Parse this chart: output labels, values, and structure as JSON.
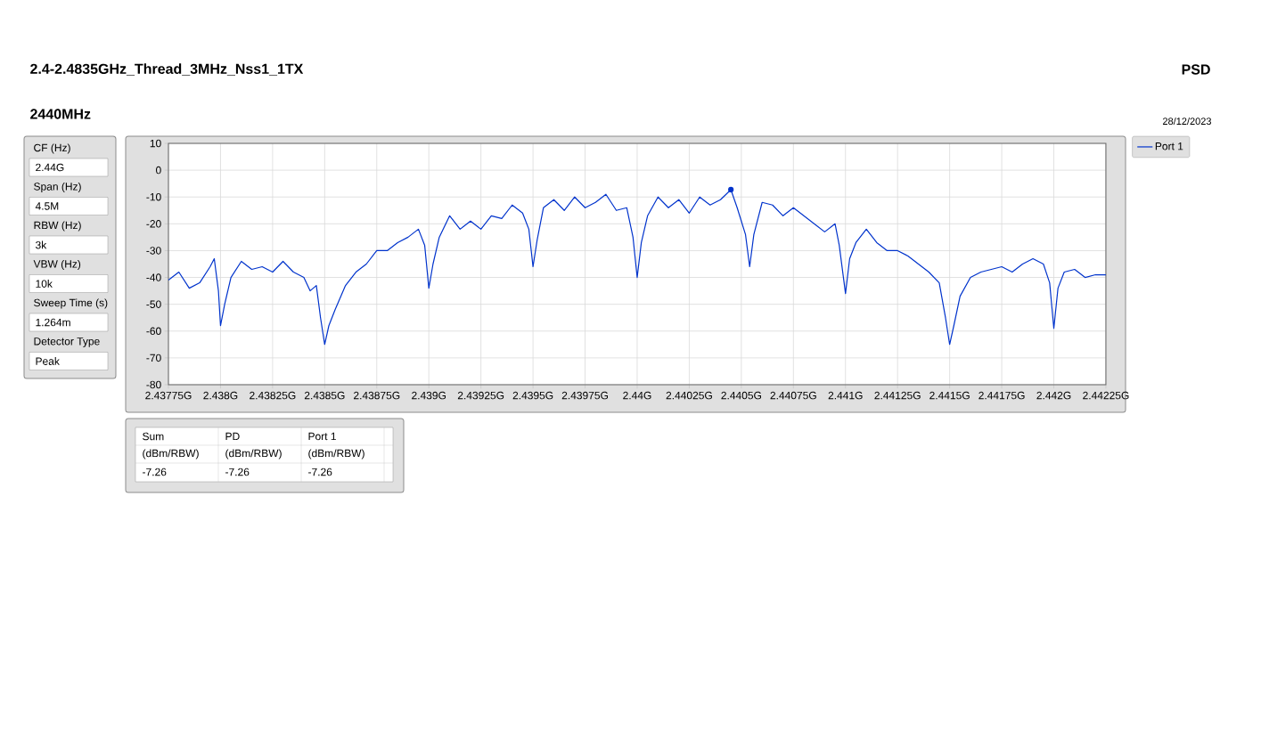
{
  "chart_data": {
    "type": "line",
    "title": "2.4-2.4835GHz_Thread_3MHz_Nss1_1TX",
    "subtitle": "2440MHz",
    "annotations": [
      "PSD",
      "28/12/2023",
      "CF (Hz)",
      "2.44G",
      "Span (Hz)",
      "4.5M",
      "RBW (Hz)",
      "3k",
      "VBW (Hz)",
      "10k",
      "Sweep Time (s)",
      "1.264m",
      "Detector Type",
      "Peak",
      "Sum",
      "PD",
      "Port 1",
      "(dBm/RBW)",
      "(dBm/RBW)",
      "(dBm/RBW)",
      "-7.26",
      "-7.26",
      "-7.26"
    ],
    "xlim": [
      2.43775,
      2.44225
    ],
    "xticks": [
      {
        "value": 2.43775,
        "label": "2.43775G"
      },
      {
        "value": 2.438,
        "label": "2.438G"
      },
      {
        "value": 2.43825,
        "label": "2.43825G"
      },
      {
        "value": 2.4385,
        "label": "2.4385G"
      },
      {
        "value": 2.43875,
        "label": "2.43875G"
      },
      {
        "value": 2.439,
        "label": "2.439G"
      },
      {
        "value": 2.43925,
        "label": "2.43925G"
      },
      {
        "value": 2.4395,
        "label": "2.4395G"
      },
      {
        "value": 2.43975,
        "label": "2.43975G"
      },
      {
        "value": 2.44,
        "label": "2.44G"
      },
      {
        "value": 2.44025,
        "label": "2.44025G"
      },
      {
        "value": 2.4405,
        "label": "2.4405G"
      },
      {
        "value": 2.44075,
        "label": "2.44075G"
      },
      {
        "value": 2.441,
        "label": "2.441G"
      },
      {
        "value": 2.44125,
        "label": "2.44125G"
      },
      {
        "value": 2.4415,
        "label": "2.4415G"
      },
      {
        "value": 2.44175,
        "label": "2.44175G"
      },
      {
        "value": 2.442,
        "label": "2.442G"
      },
      {
        "value": 2.44225,
        "label": "2.44225G"
      }
    ],
    "ylim": [
      -80,
      10
    ],
    "yticks": [
      -80,
      -70,
      -60,
      -50,
      -40,
      -30,
      -20,
      -10,
      0,
      10
    ],
    "grid": true,
    "legend": "top right",
    "series": [
      {
        "name": "Port 1",
        "color": "#0033cc",
        "marker": "none",
        "x": [
          2.43775,
          2.4378,
          2.43785,
          2.4379,
          2.43795,
          2.43797,
          2.43799,
          2.438,
          2.43802,
          2.43805,
          2.4381,
          2.43815,
          2.4382,
          2.43825,
          2.4383,
          2.43835,
          2.4384,
          2.43843,
          2.43846,
          2.43848,
          2.4385,
          2.43852,
          2.43855,
          2.4386,
          2.43865,
          2.4387,
          2.43875,
          2.4388,
          2.43885,
          2.4389,
          2.43895,
          2.43898,
          2.439,
          2.43902,
          2.43905,
          2.4391,
          2.43915,
          2.4392,
          2.43925,
          2.4393,
          2.43935,
          2.4394,
          2.43945,
          2.43948,
          2.4395,
          2.43952,
          2.43955,
          2.4396,
          2.43965,
          2.4397,
          2.43975,
          2.4398,
          2.43985,
          2.4399,
          2.43995,
          2.43998,
          2.44,
          2.44002,
          2.44005,
          2.4401,
          2.44015,
          2.4402,
          2.44025,
          2.4403,
          2.44035,
          2.4404,
          2.44045,
          2.44048,
          2.44052,
          2.44054,
          2.44056,
          2.4406,
          2.44065,
          2.4407,
          2.44075,
          2.4408,
          2.44085,
          2.4409,
          2.44095,
          2.44097,
          2.441,
          2.44102,
          2.44105,
          2.4411,
          2.44115,
          2.4412,
          2.44125,
          2.4413,
          2.44135,
          2.4414,
          2.44145,
          2.44148,
          2.4415,
          2.44152,
          2.44155,
          2.4416,
          2.44165,
          2.4417,
          2.44175,
          2.4418,
          2.44185,
          2.4419,
          2.44195,
          2.44198,
          2.442,
          2.44202,
          2.44205,
          2.4421,
          2.44215,
          2.4422,
          2.44225
        ],
        "values": [
          -41,
          -38,
          -44,
          -42,
          -36,
          -33,
          -45,
          -58,
          -50,
          -40,
          -34,
          -37,
          -36,
          -38,
          -34,
          -38,
          -40,
          -45,
          -43,
          -55,
          -65,
          -58,
          -52,
          -43,
          -38,
          -35,
          -30,
          -30,
          -27,
          -25,
          -22,
          -28,
          -44,
          -35,
          -25,
          -17,
          -22,
          -19,
          -22,
          -17,
          -18,
          -13,
          -16,
          -22,
          -36,
          -26,
          -14,
          -11,
          -15,
          -10,
          -14,
          -12,
          -9,
          -15,
          -14,
          -25,
          -40,
          -27,
          -17,
          -10,
          -14,
          -11,
          -16,
          -10,
          -13,
          -11,
          -7.26,
          -14,
          -24,
          -36,
          -24,
          -12,
          -13,
          -17,
          -14,
          -17,
          -20,
          -23,
          -20,
          -28,
          -46,
          -33,
          -27,
          -22,
          -27,
          -30,
          -30,
          -32,
          -35,
          -38,
          -42,
          -55,
          -65,
          -58,
          -47,
          -40,
          -38,
          -37,
          -36,
          -38,
          -35,
          -33,
          -35,
          -42,
          -59,
          -44,
          -38,
          -37,
          -40,
          -39,
          -39
        ]
      },
      {
        "type": "scatter",
        "color": "#0033cc",
        "marker": "circle",
        "x": [
          2.44045
        ],
        "values": [
          -7.26
        ]
      }
    ]
  }
}
